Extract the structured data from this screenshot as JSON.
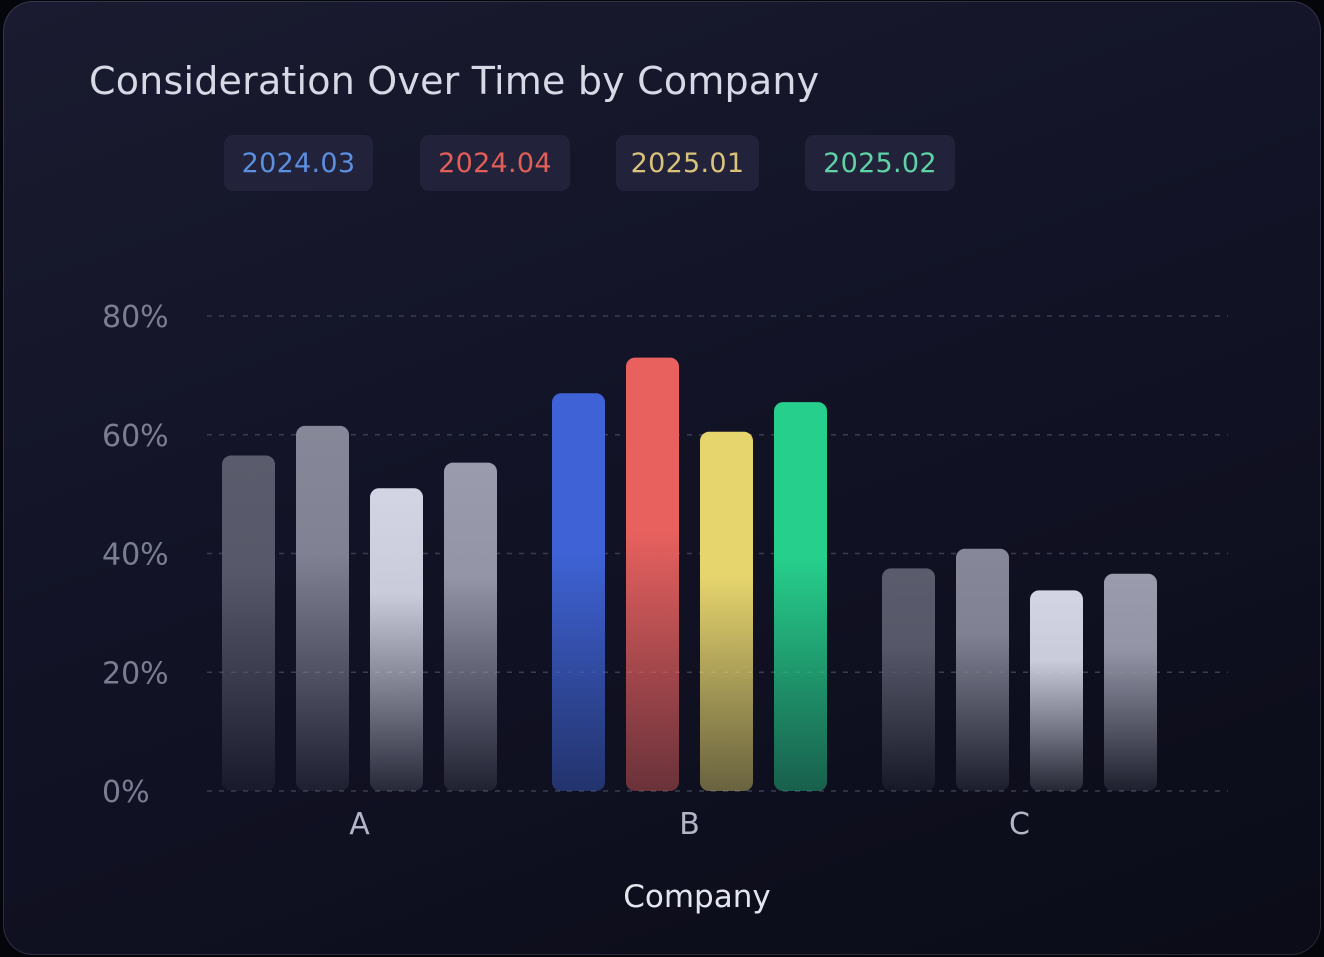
{
  "chart_data": {
    "type": "bar",
    "title": "Consideration Over Time by Company",
    "xlabel": "Company",
    "ylabel": "",
    "ylim": [
      0,
      80
    ],
    "yticks": [
      0,
      20,
      40,
      60,
      80
    ],
    "y_tick_suffix": "%",
    "grid": true,
    "legend_position": "top-left",
    "categories": [
      "A",
      "B",
      "C"
    ],
    "highlighted_category": "B",
    "series": [
      {
        "name": "2024.03",
        "color": "#5b8fe0",
        "bar_color": "#3f63d6",
        "values": [
          56.5,
          67,
          37.5
        ]
      },
      {
        "name": "2024.04",
        "color": "#e35e57",
        "bar_color": "#e8615f",
        "values": [
          61.5,
          73,
          40.8
        ]
      },
      {
        "name": "2025.01",
        "color": "#d9c37b",
        "bar_color": "#e6d56d",
        "values": [
          51,
          60.5,
          33.8
        ]
      },
      {
        "name": "2025.02",
        "color": "#5fd3a6",
        "bar_color": "#26cf8c",
        "values": [
          55.3,
          65.5,
          36.6
        ]
      }
    ],
    "muted_bar_colors": [
      "#5a5c6d",
      "#868899",
      "#d3d5e4",
      "#9a9cad"
    ]
  }
}
